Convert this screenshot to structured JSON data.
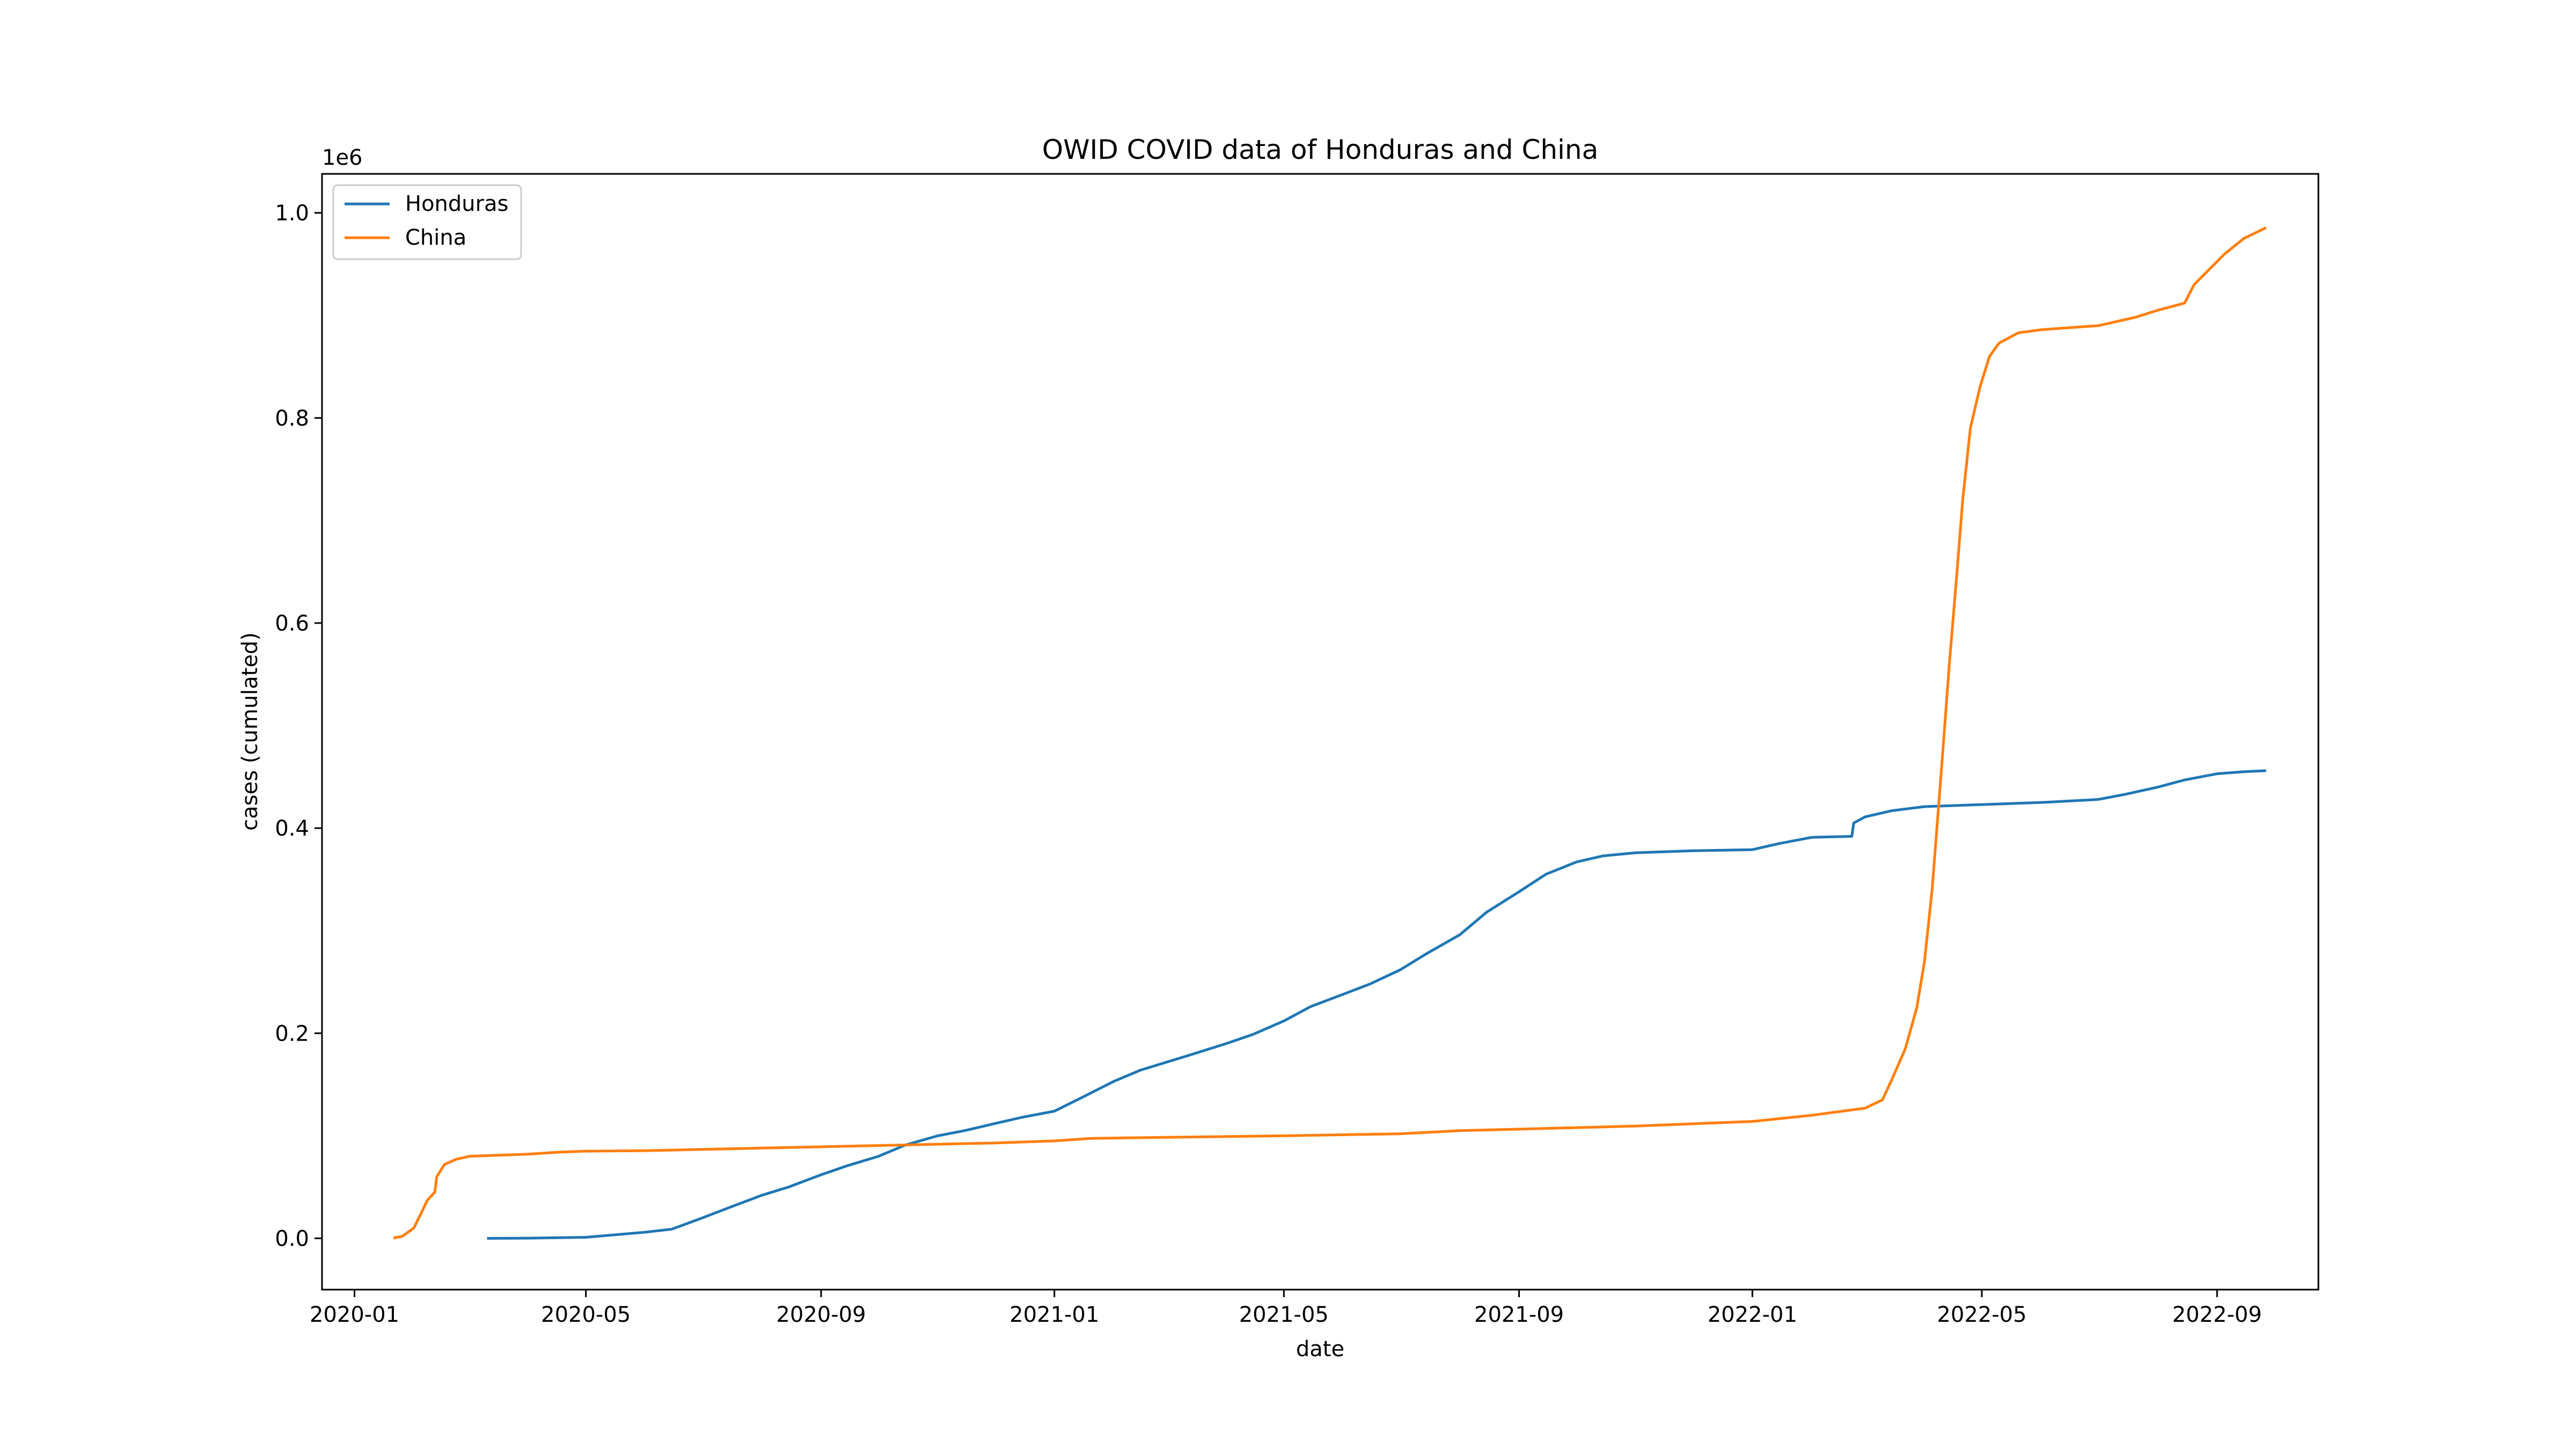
{
  "chart_data": {
    "type": "line",
    "title": "OWID COVID data of Honduras and China",
    "xlabel": "date",
    "ylabel": "cases (cumulated)",
    "y_offset_label": "1e6",
    "x_axis_type": "date",
    "xlim": [
      "2019-12-15",
      "2022-10-24"
    ],
    "ylim": [
      -50000,
      1038000
    ],
    "x_ticks": [
      {
        "date": "2020-01-01",
        "label": "2020-01"
      },
      {
        "date": "2020-05-01",
        "label": "2020-05"
      },
      {
        "date": "2020-09-01",
        "label": "2020-09"
      },
      {
        "date": "2021-01-01",
        "label": "2021-01"
      },
      {
        "date": "2021-05-01",
        "label": "2021-05"
      },
      {
        "date": "2021-09-01",
        "label": "2021-09"
      },
      {
        "date": "2022-01-01",
        "label": "2022-01"
      },
      {
        "date": "2022-05-01",
        "label": "2022-05"
      },
      {
        "date": "2022-09-01",
        "label": "2022-09"
      }
    ],
    "y_ticks": [
      {
        "value": 0,
        "label": "0.0"
      },
      {
        "value": 200000,
        "label": "0.2"
      },
      {
        "value": 400000,
        "label": "0.4"
      },
      {
        "value": 600000,
        "label": "0.6"
      },
      {
        "value": 800000,
        "label": "0.8"
      },
      {
        "value": 1000000,
        "label": "1.0"
      }
    ],
    "grid": false,
    "legend_position": "top-left",
    "series": [
      {
        "name": "Honduras",
        "color": "#1f77b4",
        "points": [
          [
            "2020-03-11",
            0
          ],
          [
            "2020-04-01",
            200
          ],
          [
            "2020-05-01",
            1000
          ],
          [
            "2020-06-01",
            6000
          ],
          [
            "2020-06-15",
            9000
          ],
          [
            "2020-07-01",
            20000
          ],
          [
            "2020-07-15",
            30000
          ],
          [
            "2020-08-01",
            42000
          ],
          [
            "2020-08-15",
            50000
          ],
          [
            "2020-09-01",
            62000
          ],
          [
            "2020-09-15",
            71000
          ],
          [
            "2020-10-01",
            80000
          ],
          [
            "2020-10-15",
            91000
          ],
          [
            "2020-11-01",
            100000
          ],
          [
            "2020-11-15",
            105000
          ],
          [
            "2020-12-01",
            112000
          ],
          [
            "2020-12-15",
            118000
          ],
          [
            "2021-01-01",
            124000
          ],
          [
            "2021-01-15",
            137000
          ],
          [
            "2021-02-01",
            153000
          ],
          [
            "2021-02-15",
            164000
          ],
          [
            "2021-03-01",
            172000
          ],
          [
            "2021-03-15",
            180000
          ],
          [
            "2021-04-01",
            190000
          ],
          [
            "2021-04-15",
            199000
          ],
          [
            "2021-05-01",
            212000
          ],
          [
            "2021-05-15",
            226000
          ],
          [
            "2021-06-01",
            238000
          ],
          [
            "2021-06-15",
            248000
          ],
          [
            "2021-07-01",
            262000
          ],
          [
            "2021-07-15",
            278000
          ],
          [
            "2021-08-01",
            296000
          ],
          [
            "2021-08-15",
            318000
          ],
          [
            "2021-09-01",
            338000
          ],
          [
            "2021-09-15",
            355000
          ],
          [
            "2021-10-01",
            367000
          ],
          [
            "2021-10-15",
            373000
          ],
          [
            "2021-11-01",
            376000
          ],
          [
            "2021-12-01",
            378000
          ],
          [
            "2022-01-01",
            379000
          ],
          [
            "2022-01-15",
            385000
          ],
          [
            "2022-02-01",
            391000
          ],
          [
            "2022-02-22",
            392000
          ],
          [
            "2022-02-23",
            405000
          ],
          [
            "2022-03-01",
            411000
          ],
          [
            "2022-03-15",
            417000
          ],
          [
            "2022-04-01",
            421000
          ],
          [
            "2022-05-01",
            423000
          ],
          [
            "2022-06-01",
            425000
          ],
          [
            "2022-07-01",
            428000
          ],
          [
            "2022-07-15",
            433000
          ],
          [
            "2022-08-01",
            440000
          ],
          [
            "2022-08-15",
            447000
          ],
          [
            "2022-09-01",
            453000
          ],
          [
            "2022-09-15",
            455000
          ],
          [
            "2022-09-26",
            456000
          ]
        ]
      },
      {
        "name": "China",
        "color": "#ff7f0e",
        "points": [
          [
            "2020-01-22",
            500
          ],
          [
            "2020-01-26",
            2000
          ],
          [
            "2020-02-01",
            10000
          ],
          [
            "2020-02-05",
            25000
          ],
          [
            "2020-02-08",
            37000
          ],
          [
            "2020-02-12",
            45000
          ],
          [
            "2020-02-13",
            60000
          ],
          [
            "2020-02-17",
            72000
          ],
          [
            "2020-02-23",
            77000
          ],
          [
            "2020-03-01",
            80000
          ],
          [
            "2020-03-15",
            81000
          ],
          [
            "2020-03-31",
            82000
          ],
          [
            "2020-04-17",
            84000
          ],
          [
            "2020-05-01",
            85000
          ],
          [
            "2020-06-01",
            85500
          ],
          [
            "2020-08-01",
            88000
          ],
          [
            "2020-10-01",
            90500
          ],
          [
            "2020-12-01",
            93000
          ],
          [
            "2021-01-01",
            95000
          ],
          [
            "2021-01-20",
            97500
          ],
          [
            "2021-03-01",
            98500
          ],
          [
            "2021-05-01",
            100000
          ],
          [
            "2021-07-01",
            102000
          ],
          [
            "2021-08-01",
            105000
          ],
          [
            "2021-09-01",
            106500
          ],
          [
            "2021-11-01",
            109500
          ],
          [
            "2022-01-01",
            114000
          ],
          [
            "2022-02-01",
            120000
          ],
          [
            "2022-03-01",
            127000
          ],
          [
            "2022-03-10",
            135000
          ],
          [
            "2022-03-15",
            155000
          ],
          [
            "2022-03-22",
            185000
          ],
          [
            "2022-03-28",
            225000
          ],
          [
            "2022-04-01",
            270000
          ],
          [
            "2022-04-05",
            340000
          ],
          [
            "2022-04-10",
            460000
          ],
          [
            "2022-04-14",
            560000
          ],
          [
            "2022-04-18",
            650000
          ],
          [
            "2022-04-21",
            720000
          ],
          [
            "2022-04-25",
            790000
          ],
          [
            "2022-04-30",
            830000
          ],
          [
            "2022-05-05",
            860000
          ],
          [
            "2022-05-10",
            873000
          ],
          [
            "2022-05-20",
            883000
          ],
          [
            "2022-06-01",
            886000
          ],
          [
            "2022-07-01",
            890000
          ],
          [
            "2022-07-20",
            898000
          ],
          [
            "2022-08-01",
            905000
          ],
          [
            "2022-08-15",
            912000
          ],
          [
            "2022-08-20",
            930000
          ],
          [
            "2022-08-28",
            945000
          ],
          [
            "2022-09-05",
            960000
          ],
          [
            "2022-09-15",
            975000
          ],
          [
            "2022-09-26",
            985000
          ]
        ]
      }
    ]
  }
}
